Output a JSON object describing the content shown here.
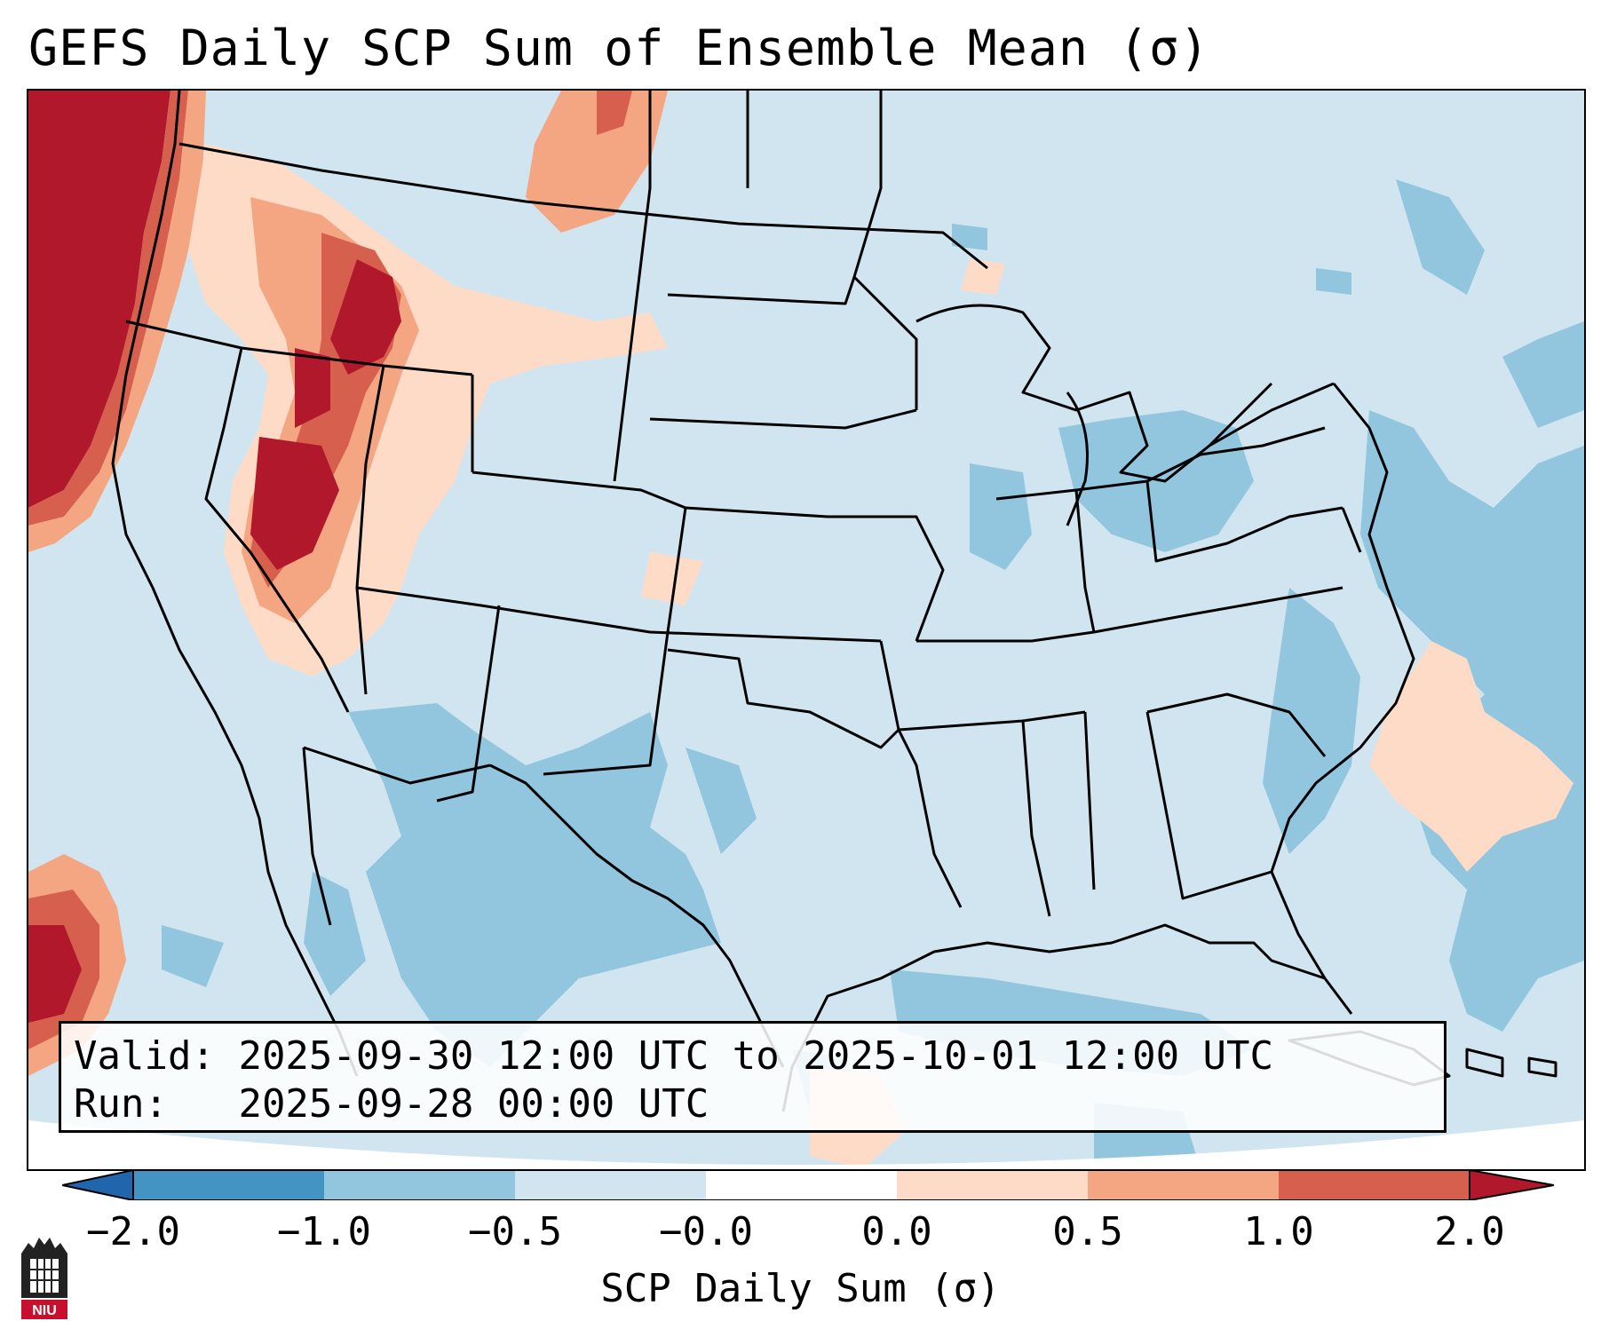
{
  "title": "GEFS Daily SCP Sum of Ensemble Mean (σ)",
  "info": {
    "valid_label": "Valid:",
    "valid_value": "2025-09-30 12:00 UTC to 2025-10-01 12:00 UTC",
    "run_label": "Run:",
    "run_value": "2025-09-28 00:00 UTC"
  },
  "colorbar": {
    "label": "SCP Daily Sum (σ)",
    "ticks": [
      "−2.0",
      "−1.0",
      "−0.5",
      "−0.0",
      "0.0",
      "0.5",
      "1.0",
      "2.0"
    ],
    "bins": [
      "#2166ac",
      "#4393c3",
      "#92c5de",
      "#d1e5f0",
      "#ffffff",
      "#fddbc7",
      "#f4a582",
      "#d6604d",
      "#b2182b"
    ]
  },
  "colors": {
    "background": "#d1e5f0",
    "strong_positive": "#b2182b",
    "moderate_positive": "#d6604d",
    "weak_positive": "#f4a582",
    "slight_positive": "#fddbc7",
    "slight_negative": "#92c5de"
  },
  "logo": {
    "text": "NIU"
  }
}
